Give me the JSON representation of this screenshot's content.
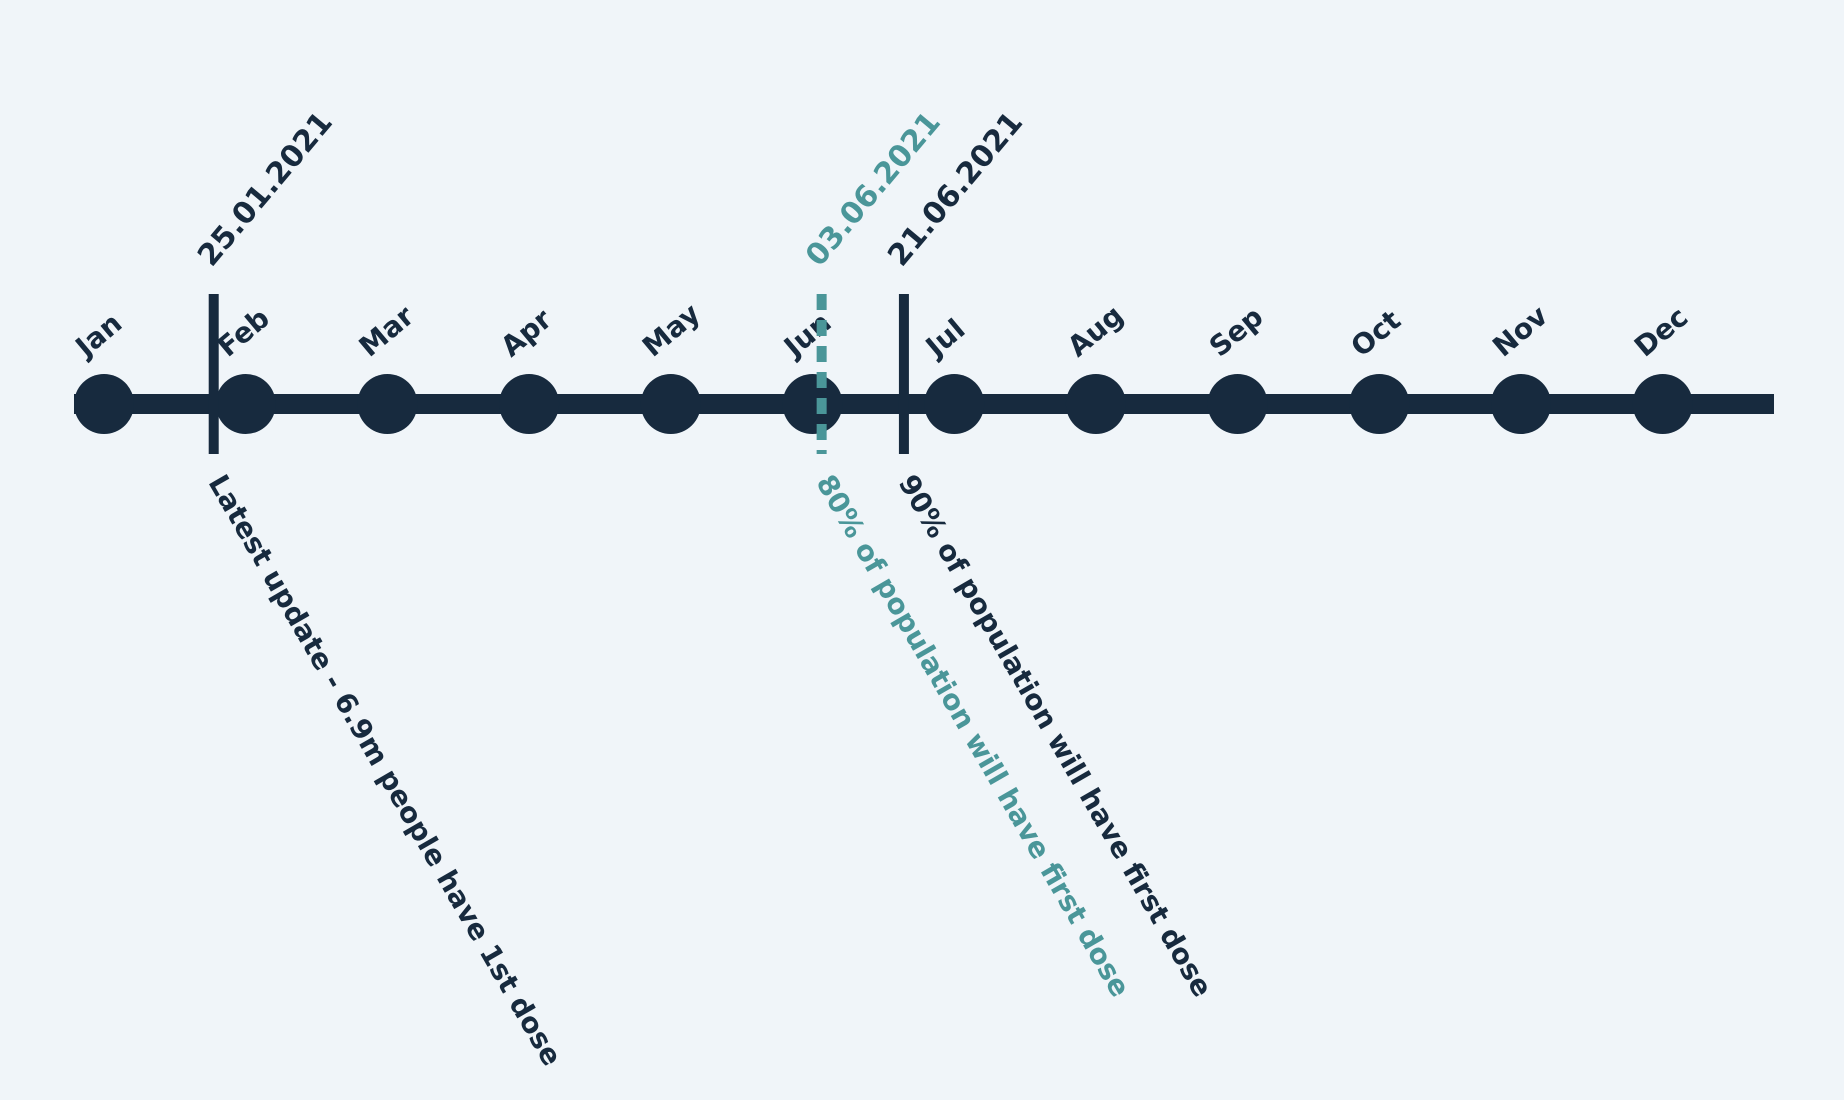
{
  "colors": {
    "background": "#f0f5f9",
    "primary": "#172a3e",
    "accent": "#4a9699"
  },
  "timeline": {
    "months": [
      "Jan",
      "Feb",
      "Mar",
      "Apr",
      "May",
      "Jun",
      "Jul",
      "Aug",
      "Sep",
      "Oct",
      "Nov",
      "Dec"
    ],
    "year": 2021
  },
  "chart_data": {
    "type": "timeline",
    "categories": [
      "Jan",
      "Feb",
      "Mar",
      "Apr",
      "May",
      "Jun",
      "Jul",
      "Aug",
      "Sep",
      "Oct",
      "Nov",
      "Dec"
    ],
    "events": [
      {
        "date": "25.01.2021",
        "label": "Latest update - 6.9m people have 1st dose",
        "style": "solid",
        "color": "#172a3e"
      },
      {
        "date": "03.06.2021",
        "label": "80% of population will have first dose",
        "style": "dashed",
        "color": "#4a9699"
      },
      {
        "date": "21.06.2021",
        "label": "90% of population will have first dose",
        "style": "solid",
        "color": "#172a3e"
      }
    ]
  }
}
